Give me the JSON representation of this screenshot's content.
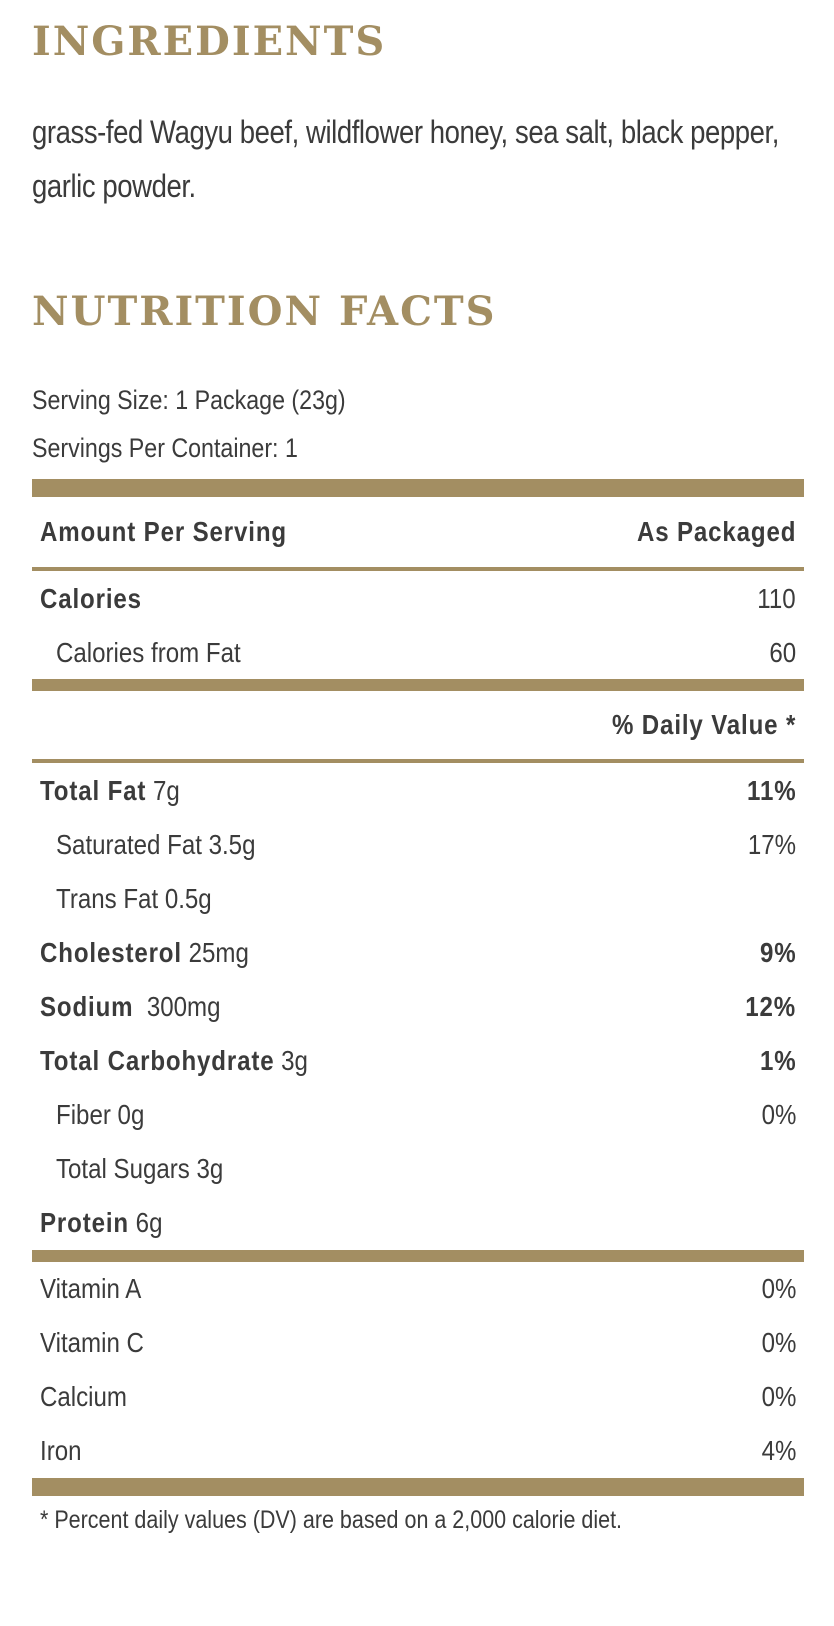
{
  "ingredients": {
    "title": "INGREDIENTS",
    "text": "grass-fed Wagyu beef, wildflower honey, sea salt, black pepper, garlic powder."
  },
  "nutrition": {
    "title": "NUTRITION FACTS",
    "serving_size": "Serving Size: 1 Package (23g)",
    "servings_per_container": "Servings Per Container: 1",
    "header": {
      "left": "Amount Per Serving",
      "right": "As Packaged"
    },
    "calories": {
      "label": "Calories",
      "value": "110"
    },
    "calories_from_fat": {
      "label": "Calories from Fat",
      "value": "60"
    },
    "daily_value_header": "% Daily Value *",
    "nutrients": [
      {
        "name": "Total Fat",
        "amount": "7g",
        "dv": "11%"
      },
      {
        "name": "Saturated Fat 3.5g",
        "amount": "",
        "dv": "17%"
      },
      {
        "name": "Trans Fat 0.5g",
        "amount": "",
        "dv": ""
      },
      {
        "name": "Cholesterol",
        "amount": "25mg",
        "dv": "9%"
      },
      {
        "name": "Sodium",
        "amount": " 300mg",
        "dv": "12%"
      },
      {
        "name": "Total Carbohydrate",
        "amount": "3g",
        "dv": "1%"
      },
      {
        "name": "Fiber 0g",
        "amount": "",
        "dv": "0%"
      },
      {
        "name": "Total Sugars 3g",
        "amount": "",
        "dv": ""
      },
      {
        "name": "Protein",
        "amount": "6g",
        "dv": ""
      }
    ],
    "vitamins": [
      {
        "name": "Vitamin A",
        "dv": "0%"
      },
      {
        "name": "Vitamin C",
        "dv": "0%"
      },
      {
        "name": "Calcium",
        "dv": "0%"
      },
      {
        "name": "Iron",
        "dv": "4%"
      }
    ],
    "footnote": "* Percent daily values (DV) are based on a 2,000 calorie diet."
  },
  "colors": {
    "accent": "#a38e62",
    "text": "#3b3b3b"
  }
}
